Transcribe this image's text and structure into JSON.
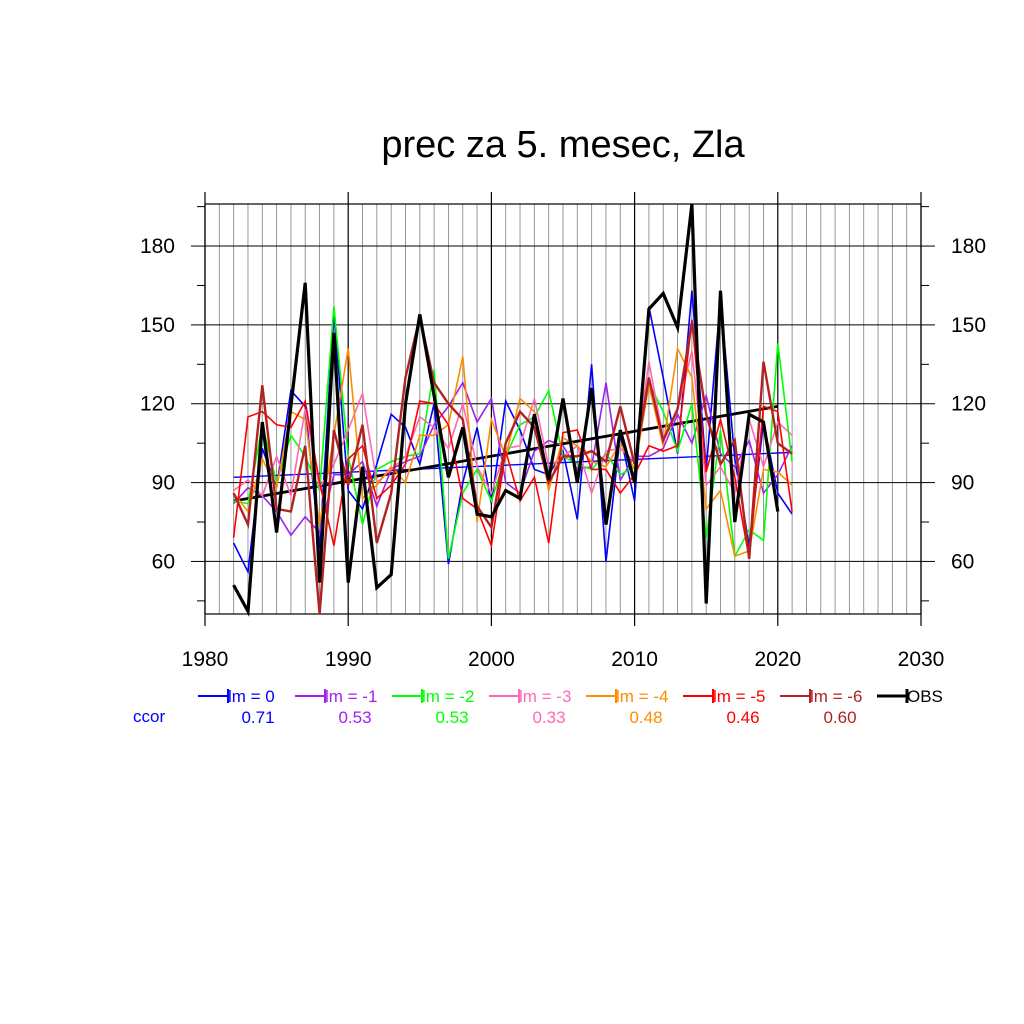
{
  "chart_data": {
    "type": "line",
    "title": "prec za 5. mesec, Zla",
    "xlabel": "",
    "ylabel": "",
    "xlim": [
      1980,
      2030
    ],
    "ylim": [
      40,
      196
    ],
    "x_ticks": [
      1980,
      1990,
      2000,
      2010,
      2020,
      2030
    ],
    "y_ticks": [
      60,
      90,
      120,
      150,
      180
    ],
    "grid": true,
    "x": [
      1982,
      1983,
      1984,
      1985,
      1986,
      1987,
      1988,
      1989,
      1990,
      1991,
      1992,
      1993,
      1994,
      1995,
      1996,
      1997,
      1998,
      1999,
      2000,
      2001,
      2002,
      2003,
      2004,
      2005,
      2006,
      2007,
      2008,
      2009,
      2010,
      2011,
      2012,
      2013,
      2014,
      2015,
      2016,
      2017,
      2018,
      2019,
      2020,
      2021
    ],
    "ccor_label": "ccor",
    "series": [
      {
        "name": "lm = 0",
        "color": "#0000ff",
        "ccor": "0.71",
        "width": 1.6,
        "values": [
          67,
          56,
          103,
          88,
          125,
          119,
          65,
          155,
          87,
          80,
          97,
          116,
          111,
          97,
          120,
          59,
          90,
          111,
          82,
          121,
          110,
          95,
          93,
          102,
          76,
          135,
          60,
          108,
          83,
          157,
          130,
          101,
          163,
          95,
          160,
          99,
          66,
          113,
          86,
          78
        ],
        "trend": [
          92,
          101.5
        ]
      },
      {
        "name": "lm = -1",
        "color": "#a020f0",
        "ccor": "0.53",
        "width": 1.6,
        "values": [
          82,
          88,
          85,
          79,
          70,
          77,
          71,
          93,
          93,
          98,
          81,
          95,
          98,
          100,
          112,
          119,
          128,
          113,
          122,
          90,
          86,
          102,
          106,
          104,
          95,
          96,
          128,
          91,
          100,
          100,
          103,
          116,
          105,
          123,
          101,
          96,
          106,
          86,
          93,
          104
        ]
      },
      {
        "name": "lm = -2",
        "color": "#00ff00",
        "ccor": "0.53",
        "width": 1.6,
        "values": [
          83,
          82,
          112,
          90,
          108,
          100,
          87,
          157,
          100,
          74,
          95,
          98,
          100,
          101,
          133,
          61,
          86,
          95,
          83,
          100,
          112,
          115,
          125,
          100,
          97,
          95,
          101,
          93,
          96,
          128,
          117,
          102,
          120,
          69,
          110,
          62,
          72,
          68,
          143,
          98
        ]
      },
      {
        "name": "lm = -3",
        "color": "#ff69b4",
        "ccor": "0.33",
        "width": 1.6,
        "values": [
          87,
          91,
          85,
          100,
          85,
          118,
          88,
          97,
          110,
          124,
          90,
          95,
          100,
          115,
          111,
          103,
          120,
          96,
          86,
          103,
          104,
          122,
          96,
          100,
          104,
          86,
          102,
          103,
          98,
          136,
          107,
          118,
          140,
          89,
          96,
          86,
          114,
          96,
          113,
          108
        ]
      },
      {
        "name": "lm = -4",
        "color": "#ff8c00",
        "ccor": "0.48",
        "width": 1.6,
        "values": [
          86,
          79,
          99,
          88,
          117,
          114,
          74,
          108,
          141,
          84,
          89,
          96,
          90,
          108,
          108,
          112,
          138,
          75,
          114,
          100,
          122,
          117,
          87,
          107,
          104,
          98,
          96,
          105,
          95,
          127,
          104,
          141,
          130,
          80,
          87,
          62,
          64,
          95,
          94,
          89
        ]
      },
      {
        "name": "lm = -5",
        "color": "#ff0000",
        "ccor": "0.46",
        "width": 1.6,
        "values": [
          69,
          115,
          117,
          112,
          111,
          121,
          90,
          66,
          99,
          104,
          84,
          89,
          97,
          121,
          120,
          112,
          84,
          80,
          66,
          102,
          83,
          92,
          67,
          109,
          110,
          95,
          95,
          86,
          93,
          104,
          102,
          104,
          152,
          94,
          114,
          92,
          61,
          119,
          117,
          79
        ]
      },
      {
        "name": "lm = -6",
        "color": "#b22222",
        "ccor": "0.60",
        "width": 2.4,
        "values": [
          86,
          74,
          127,
          80,
          79,
          104,
          40,
          110,
          89,
          112,
          67,
          86,
          130,
          153,
          128,
          120,
          114,
          81,
          73,
          105,
          117,
          111,
          90,
          100,
          100,
          102,
          98,
          119,
          97,
          130,
          106,
          118,
          151,
          116,
          97,
          106,
          61,
          136,
          105,
          101
        ]
      },
      {
        "name": "OBS",
        "color": "#000000",
        "ccor": "",
        "width": 3.2,
        "values": [
          51,
          41,
          113,
          71,
          119,
          166,
          52,
          147,
          52,
          96,
          50,
          55,
          120,
          154,
          123,
          92,
          111,
          78,
          77,
          87,
          84,
          116,
          91,
          122,
          90,
          126,
          74,
          110,
          90,
          156,
          162,
          149,
          196,
          44,
          163,
          75,
          116,
          113,
          79,
          null
        ],
        "trend": [
          83,
          119
        ]
      }
    ]
  }
}
